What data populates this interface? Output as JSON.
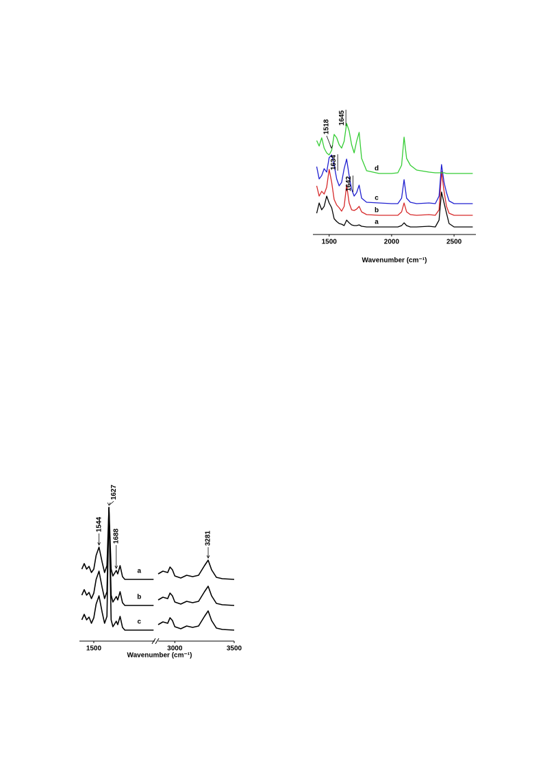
{
  "chart_data": [
    {
      "type": "line",
      "x_label": "Wavenumber (cm⁻¹)",
      "xlim": [
        1370,
        2675
      ],
      "xticks": [
        1500,
        2000,
        2500
      ],
      "ylim": [
        0,
        200
      ],
      "x": [
        1400,
        1420,
        1440,
        1460,
        1480,
        1500,
        1520,
        1540,
        1560,
        1580,
        1600,
        1620,
        1640,
        1660,
        1680,
        1700,
        1720,
        1740,
        1760,
        1800,
        1900,
        2000,
        2050,
        2080,
        2100,
        2120,
        2150,
        2200,
        2300,
        2350,
        2380,
        2400,
        2420,
        2440,
        2460,
        2500,
        2600,
        2650
      ],
      "series": [
        {
          "name": "a",
          "color": "#000000",
          "values": [
            30,
            45,
            35,
            40,
            55,
            45,
            38,
            22,
            18,
            15,
            14,
            12,
            20,
            16,
            13,
            12,
            12,
            13,
            11,
            10,
            10,
            10,
            10,
            12,
            16,
            12,
            10,
            10,
            11,
            10,
            20,
            61,
            45,
            30,
            15,
            10,
            10,
            10
          ]
        },
        {
          "name": "b",
          "color": "#d62728",
          "values": [
            70,
            55,
            62,
            58,
            68,
            94,
            75,
            50,
            42,
            38,
            33,
            40,
            71,
            45,
            35,
            34,
            36,
            40,
            32,
            28,
            27,
            27,
            27,
            32,
            45,
            32,
            28,
            27,
            28,
            27,
            35,
            91,
            62,
            40,
            30,
            27,
            27,
            27
          ]
        },
        {
          "name": "c",
          "color": "#1f1fd0",
          "values": [
            98,
            80,
            85,
            95,
            90,
            111,
            115,
            100,
            80,
            70,
            75,
            95,
            109,
            85,
            65,
            55,
            60,
            71,
            52,
            46,
            45,
            44,
            44,
            52,
            79,
            52,
            46,
            44,
            45,
            44,
            55,
            101,
            75,
            60,
            48,
            44,
            44,
            44
          ]
        },
        {
          "name": "d",
          "color": "#33cc33",
          "values": [
            136,
            128,
            140,
            125,
            118,
            115,
            122,
            145,
            140,
            130,
            125,
            135,
            161,
            150,
            130,
            118,
            135,
            148,
            110,
            92,
            88,
            88,
            89,
            100,
            141,
            110,
            100,
            93,
            90,
            89,
            89,
            89,
            89,
            88,
            88,
            88,
            88,
            88
          ]
        }
      ],
      "annotations": [
        1518,
        1634,
        1642,
        1645
      ]
    },
    {
      "type": "line",
      "x_label": "Wavenumber (cm⁻¹)",
      "xlim": [
        1380,
        3500
      ],
      "xbreak": [
        2010,
        2860
      ],
      "xticks": [
        1500,
        3000,
        3500
      ],
      "ylim": [
        0,
        200
      ],
      "x": [
        1400,
        1420,
        1440,
        1460,
        1480,
        1500,
        1520,
        1544,
        1570,
        1590,
        1610,
        1627,
        1645,
        1660,
        1688,
        1700,
        1720,
        1740,
        1760,
        1800,
        1900,
        2000,
        2860,
        2900,
        2940,
        2960,
        2980,
        3000,
        3050,
        3100,
        3150,
        3200,
        3250,
        3281,
        3310,
        3350,
        3400,
        3500
      ],
      "series": [
        {
          "name": "a",
          "color": "#000000",
          "values": [
            105,
            113,
            105,
            109,
            100,
            105,
            125,
            137,
            115,
            100,
            110,
            195,
            105,
            95,
            103,
            98,
            110,
            94,
            90,
            90,
            90,
            90,
            98,
            102,
            100,
            108,
            104,
            95,
            92,
            96,
            94,
            96,
            110,
            118,
            104,
            93,
            91,
            90
          ]
        },
        {
          "name": "b",
          "color": "#000000",
          "values": [
            67,
            75,
            67,
            71,
            62,
            70,
            90,
            102,
            78,
            62,
            72,
            195,
            67,
            57,
            65,
            60,
            72,
            56,
            52,
            52,
            52,
            52,
            60,
            64,
            62,
            70,
            66,
            57,
            54,
            58,
            56,
            58,
            72,
            80,
            66,
            55,
            53,
            52
          ]
        },
        {
          "name": "c",
          "color": "#000000",
          "values": [
            31,
            39,
            31,
            35,
            26,
            34,
            54,
            66,
            42,
            26,
            36,
            195,
            31,
            21,
            29,
            24,
            36,
            20,
            16,
            16,
            16,
            16,
            24,
            28,
            26,
            34,
            30,
            21,
            18,
            22,
            20,
            22,
            36,
            44,
            30,
            19,
            17,
            16
          ]
        }
      ],
      "annotations": [
        1544,
        1627,
        1688,
        3281
      ]
    }
  ]
}
